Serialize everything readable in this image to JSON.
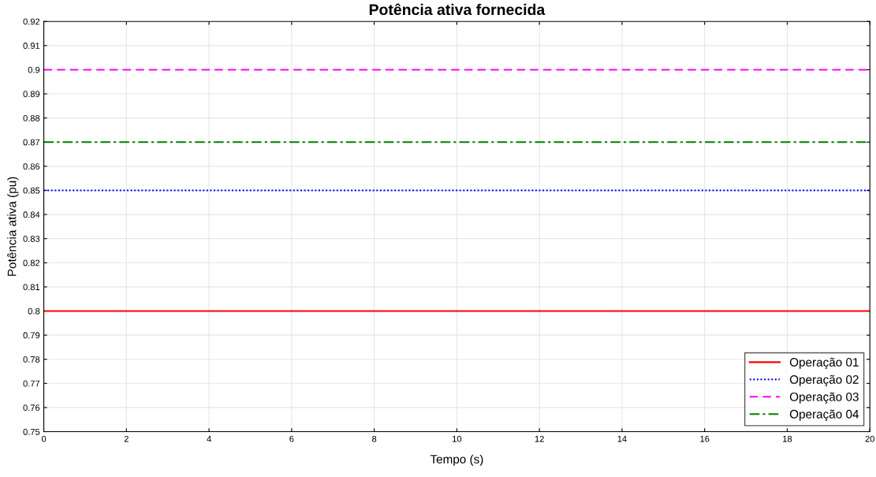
{
  "chart_data": {
    "type": "line",
    "title": "Potência ativa fornecida",
    "xlabel": "Tempo (s)",
    "ylabel": "Potência ativa (pu)",
    "x": [
      0,
      20
    ],
    "series": [
      {
        "name": "Operação 01",
        "color": "#ff0000",
        "values": [
          0.8,
          0.8
        ],
        "line_style": "solid"
      },
      {
        "name": "Operação 02",
        "color": "#0000ff",
        "values": [
          0.85,
          0.85
        ],
        "line_style": "dotted"
      },
      {
        "name": "Operação 03",
        "color": "#ff00ff",
        "values": [
          0.9,
          0.9
        ],
        "line_style": "dashed"
      },
      {
        "name": "Operação 04",
        "color": "#008000",
        "values": [
          0.87,
          0.87
        ],
        "line_style": "dashdot"
      }
    ],
    "xlim": [
      0,
      20
    ],
    "xticks": [
      0,
      2,
      4,
      6,
      8,
      10,
      12,
      14,
      16,
      18,
      20
    ],
    "ylim": [
      0.75,
      0.92
    ],
    "yticks": [
      0.75,
      0.76,
      0.77,
      0.78,
      0.79,
      0.8,
      0.81,
      0.82,
      0.83,
      0.84,
      0.85,
      0.86,
      0.87,
      0.88,
      0.89,
      0.9,
      0.91,
      0.92
    ],
    "grid": true,
    "legend": "bottom right",
    "marker": "none"
  }
}
